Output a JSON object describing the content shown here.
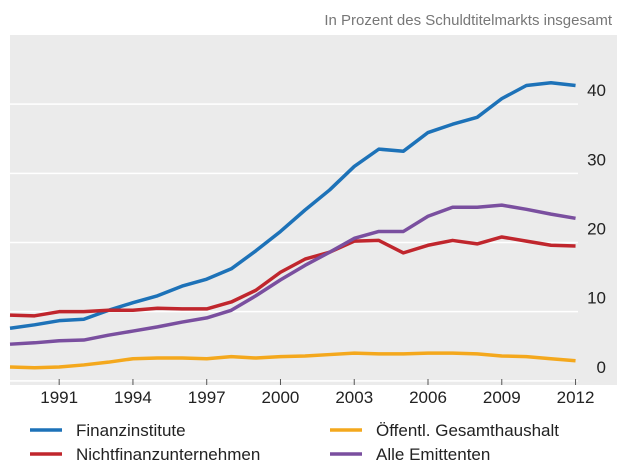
{
  "chart_data": {
    "type": "line",
    "subtitle": "In Prozent des Schuldtitelmarkts insgesamt",
    "x": [
      1989,
      1990,
      1991,
      1992,
      1993,
      1994,
      1995,
      1996,
      1997,
      1998,
      1999,
      2000,
      2001,
      2002,
      2003,
      2004,
      2005,
      2006,
      2007,
      2008,
      2009,
      2010,
      2011,
      2012
    ],
    "series": [
      {
        "name": "Finanzinstitute",
        "color": "#1d72b8",
        "values": [
          7.6,
          8.1,
          8.7,
          8.9,
          10.2,
          11.3,
          12.3,
          13.7,
          14.7,
          16.2,
          18.8,
          21.6,
          24.7,
          27.6,
          31,
          33.5,
          33.2,
          35.9,
          37.1,
          38.1,
          40.8,
          42.7,
          43.1,
          42.7
        ]
      },
      {
        "name": "Öffentl. Gesamthaushalt",
        "color": "#f4a81d",
        "values": [
          2.0,
          1.9,
          2.0,
          2.3,
          2.7,
          3.2,
          3.3,
          3.3,
          3.2,
          3.5,
          3.3,
          3.5,
          3.6,
          3.8,
          4.0,
          3.9,
          3.9,
          4.0,
          4.0,
          3.9,
          3.6,
          3.5,
          3.2,
          2.9
        ]
      },
      {
        "name": "Nichtfinanzunternehmen",
        "color": "#c0262d",
        "values": [
          9.5,
          9.4,
          10,
          10,
          10.2,
          10.2,
          10.5,
          10.4,
          10.4,
          11.4,
          13.1,
          15.7,
          17.6,
          18.6,
          20.2,
          20.3,
          18.5,
          19.6,
          20.3,
          19.8,
          20.8,
          20.2,
          19.6,
          19.5
        ]
      },
      {
        "name": "Alle Emittenten",
        "color": "#7a4f9f",
        "values": [
          5.3,
          5.5,
          5.8,
          5.9,
          6.6,
          7.2,
          7.8,
          8.5,
          9.1,
          10.2,
          12.3,
          14.6,
          16.7,
          18.6,
          20.6,
          21.6,
          21.6,
          23.8,
          25.1,
          25.1,
          25.4,
          24.8,
          24.1,
          23.5
        ]
      }
    ],
    "xlim": [
      1989,
      2012.1
    ],
    "xticks": [
      1991,
      1994,
      1997,
      2000,
      2003,
      2006,
      2009,
      2012
    ],
    "ylim": [
      -0.6,
      50
    ],
    "yticks": [
      0,
      10,
      20,
      30,
      40
    ],
    "grid": true,
    "legend": "bottom"
  }
}
